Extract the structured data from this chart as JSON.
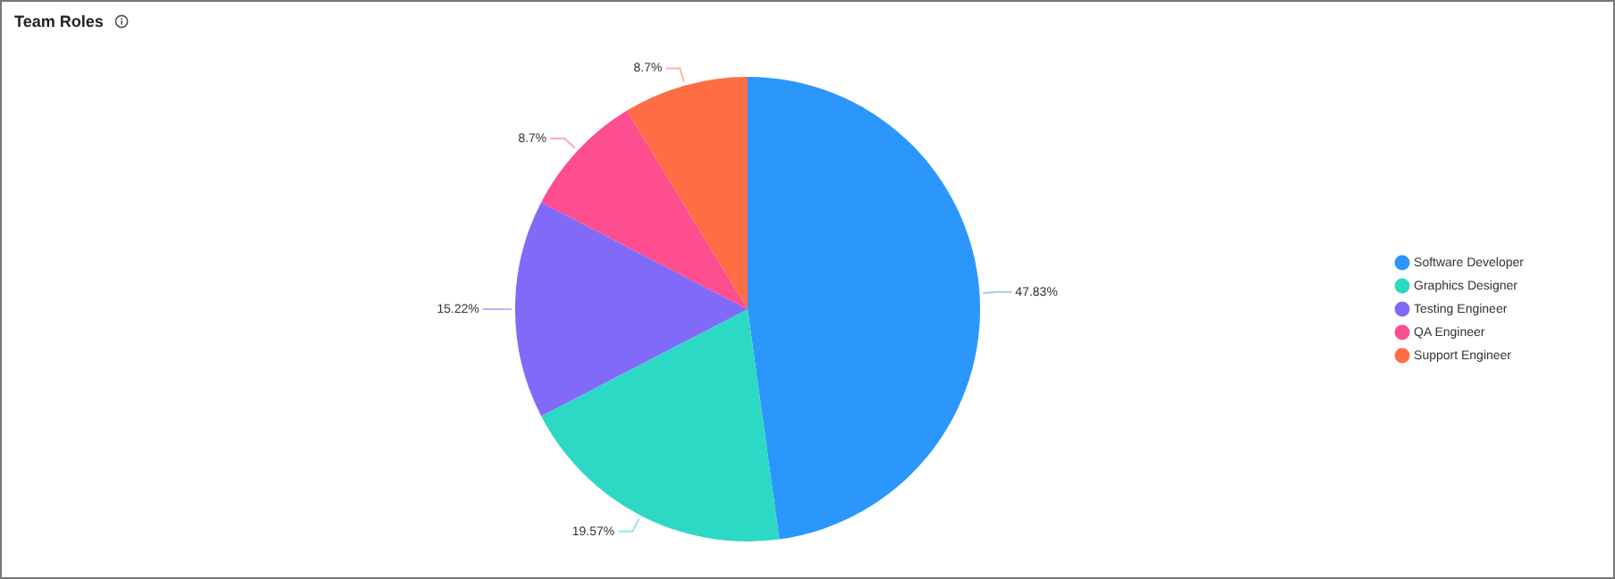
{
  "chart_data": {
    "type": "pie",
    "title": "Team Roles",
    "categories": [
      "Software Developer",
      "Graphics Designer",
      "Testing Engineer",
      "QA Engineer",
      "Support Engineer"
    ],
    "values": [
      47.83,
      19.57,
      15.22,
      8.7,
      8.7
    ],
    "colors": [
      "#2b97fc",
      "#2cd9c5",
      "#826af9",
      "#fe4e8f",
      "#fe6d43"
    ],
    "value_labels": [
      "47.83%",
      "19.57%",
      "15.22%",
      "8.7%",
      "8.7%"
    ],
    "legend": "right"
  }
}
